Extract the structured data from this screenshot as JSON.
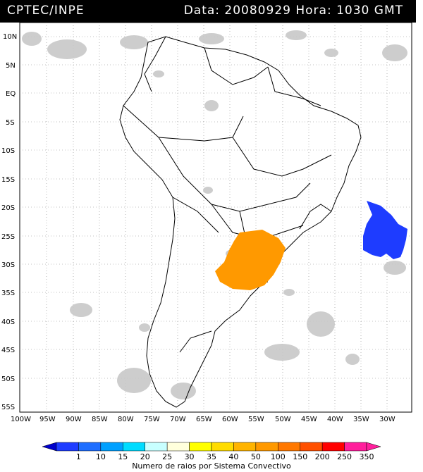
{
  "header": {
    "source": "CPTEC/INPE",
    "date_label": "Data:",
    "date": "20080929",
    "time_label": "Hora:",
    "time": "1030",
    "timezone": "GMT"
  },
  "map": {
    "lat_labels": [
      "10N",
      "5N",
      "EQ",
      "5S",
      "10S",
      "15S",
      "20S",
      "25S",
      "30S",
      "35S",
      "40S",
      "45S",
      "50S",
      "55S"
    ],
    "lon_labels": [
      "100W",
      "95W",
      "90W",
      "85W",
      "80W",
      "75W",
      "70W",
      "65W",
      "60W",
      "55W",
      "50W",
      "45W",
      "40W",
      "35W",
      "30W"
    ],
    "grid": true,
    "lightning_regions": [
      {
        "color": "#ff9900",
        "label": "orange convective system over S Brazil / Uruguay / NE Argentina"
      },
      {
        "color": "#0033ff",
        "label": "blue convective system over South Atlantic"
      }
    ]
  },
  "colorbar": {
    "ticks": [
      "1",
      "10",
      "15",
      "20",
      "25",
      "30",
      "35",
      "40",
      "50",
      "100",
      "150",
      "200",
      "250",
      "350"
    ],
    "colors": [
      "#1e3cff",
      "#1e6eff",
      "#00a0ff",
      "#00dcff",
      "#c8ffff",
      "#ffffdc",
      "#ffff00",
      "#ffdc00",
      "#ffb400",
      "#ff9900",
      "#ff7800",
      "#ff5000",
      "#ff0000",
      "#ff1e9c"
    ],
    "title": "Numero de raios por Sistema Convectivo"
  }
}
